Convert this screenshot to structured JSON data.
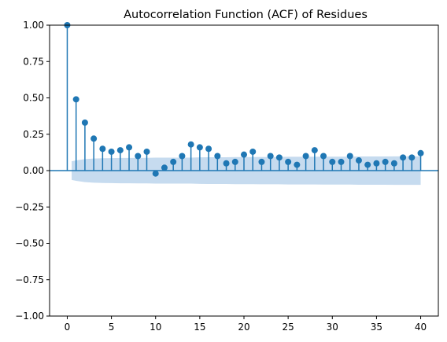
{
  "chart_data": {
    "type": "stem",
    "title": "Autocorrelation Function (ACF) of Residues",
    "xlabel": "",
    "ylabel": "",
    "xlim": [
      -2,
      42
    ],
    "ylim": [
      -1.0,
      1.0
    ],
    "x_ticks": [
      "0",
      "5",
      "10",
      "15",
      "20",
      "25",
      "30",
      "35",
      "40"
    ],
    "y_ticks": [
      "1.00",
      "0.75",
      "0.50",
      "0.25",
      "0.00",
      "−0.25",
      "−0.50",
      "−0.75",
      "−1.00"
    ],
    "x_tick_values": [
      0,
      5,
      10,
      15,
      20,
      25,
      30,
      35,
      40
    ],
    "y_tick_values": [
      1.0,
      0.75,
      0.5,
      0.25,
      0.0,
      -0.25,
      -0.5,
      -0.75,
      -1.0
    ],
    "lags": [
      0,
      1,
      2,
      3,
      4,
      5,
      6,
      7,
      8,
      9,
      10,
      11,
      12,
      13,
      14,
      15,
      16,
      17,
      18,
      19,
      20,
      21,
      22,
      23,
      24,
      25,
      26,
      27,
      28,
      29,
      30,
      31,
      32,
      33,
      34,
      35,
      36,
      37,
      38,
      39,
      40
    ],
    "values": [
      1.0,
      0.49,
      0.33,
      0.22,
      0.15,
      0.13,
      0.14,
      0.16,
      0.1,
      0.13,
      -0.02,
      0.02,
      0.06,
      0.1,
      0.18,
      0.16,
      0.15,
      0.1,
      0.05,
      0.06,
      0.11,
      0.13,
      0.06,
      0.1,
      0.09,
      0.06,
      0.04,
      0.1,
      0.14,
      0.1,
      0.06,
      0.06,
      0.1,
      0.07,
      0.04,
      0.05,
      0.06,
      0.05,
      0.09,
      0.09,
      0.12
    ],
    "confidence_upper": [
      0.064,
      0.07,
      0.079,
      0.083,
      0.085,
      0.086,
      0.087,
      0.087,
      0.088,
      0.088,
      0.089,
      0.089,
      0.089,
      0.089,
      0.089,
      0.091,
      0.092,
      0.092,
      0.092,
      0.093,
      0.093,
      0.093,
      0.094,
      0.094,
      0.094,
      0.095,
      0.095,
      0.095,
      0.095,
      0.096,
      0.096,
      0.096,
      0.096,
      0.097,
      0.097,
      0.097,
      0.097,
      0.098,
      0.098,
      0.098,
      0.098
    ],
    "colors": {
      "series": "#1f77b4",
      "band": "#c6dbef",
      "axis": "#000000"
    }
  }
}
